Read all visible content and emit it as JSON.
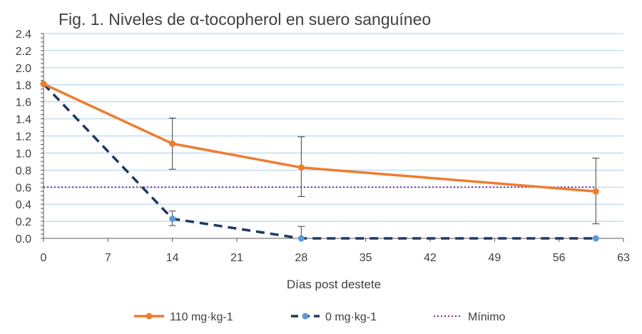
{
  "chart_data": {
    "type": "line",
    "title": "Fig. 1. Niveles de α-tocopherol en suero sanguíneo",
    "xlabel": "Días post destete",
    "ylabel": "",
    "xlim": [
      0,
      63
    ],
    "ylim": [
      0,
      2.4
    ],
    "xticks": [
      0,
      7,
      14,
      21,
      28,
      35,
      42,
      49,
      56,
      63
    ],
    "yticks": [
      0.0,
      0.2,
      0.4,
      0.6,
      0.8,
      1.0,
      1.2,
      1.4,
      1.6,
      1.8,
      2.0,
      2.2,
      2.4
    ],
    "ytick_labels": [
      "0.0",
      "0.2",
      "0.4",
      "0.6",
      "0.8",
      "1.0",
      "1.2",
      "1.4",
      "1.6",
      "1.8",
      "2.0",
      "2.2",
      "2.4"
    ],
    "grid": true,
    "legend_position": "bottom",
    "series": [
      {
        "name": "110 mg·kg-1",
        "color": "#ED7D31",
        "style": "solid",
        "x": [
          0,
          14,
          28,
          60
        ],
        "y": [
          1.81,
          1.11,
          0.83,
          0.55
        ],
        "error_low": [
          null,
          0.81,
          0.49,
          0.17
        ],
        "error_high": [
          null,
          1.41,
          1.19,
          0.94
        ]
      },
      {
        "name": "0 mg·kg-1",
        "color": "#1F3864",
        "marker_color": "#5B9BD5",
        "style": "dashed",
        "x": [
          0,
          14,
          28,
          60
        ],
        "y": [
          1.81,
          0.23,
          0.0,
          0.0
        ],
        "error_low": [
          null,
          0.15,
          0.0,
          null
        ],
        "error_high": [
          null,
          0.32,
          0.14,
          null
        ]
      },
      {
        "name": "Mínimo",
        "color": "#7030A0",
        "style": "dotted",
        "x": [
          0,
          60
        ],
        "y": [
          0.6,
          0.6
        ]
      }
    ]
  }
}
